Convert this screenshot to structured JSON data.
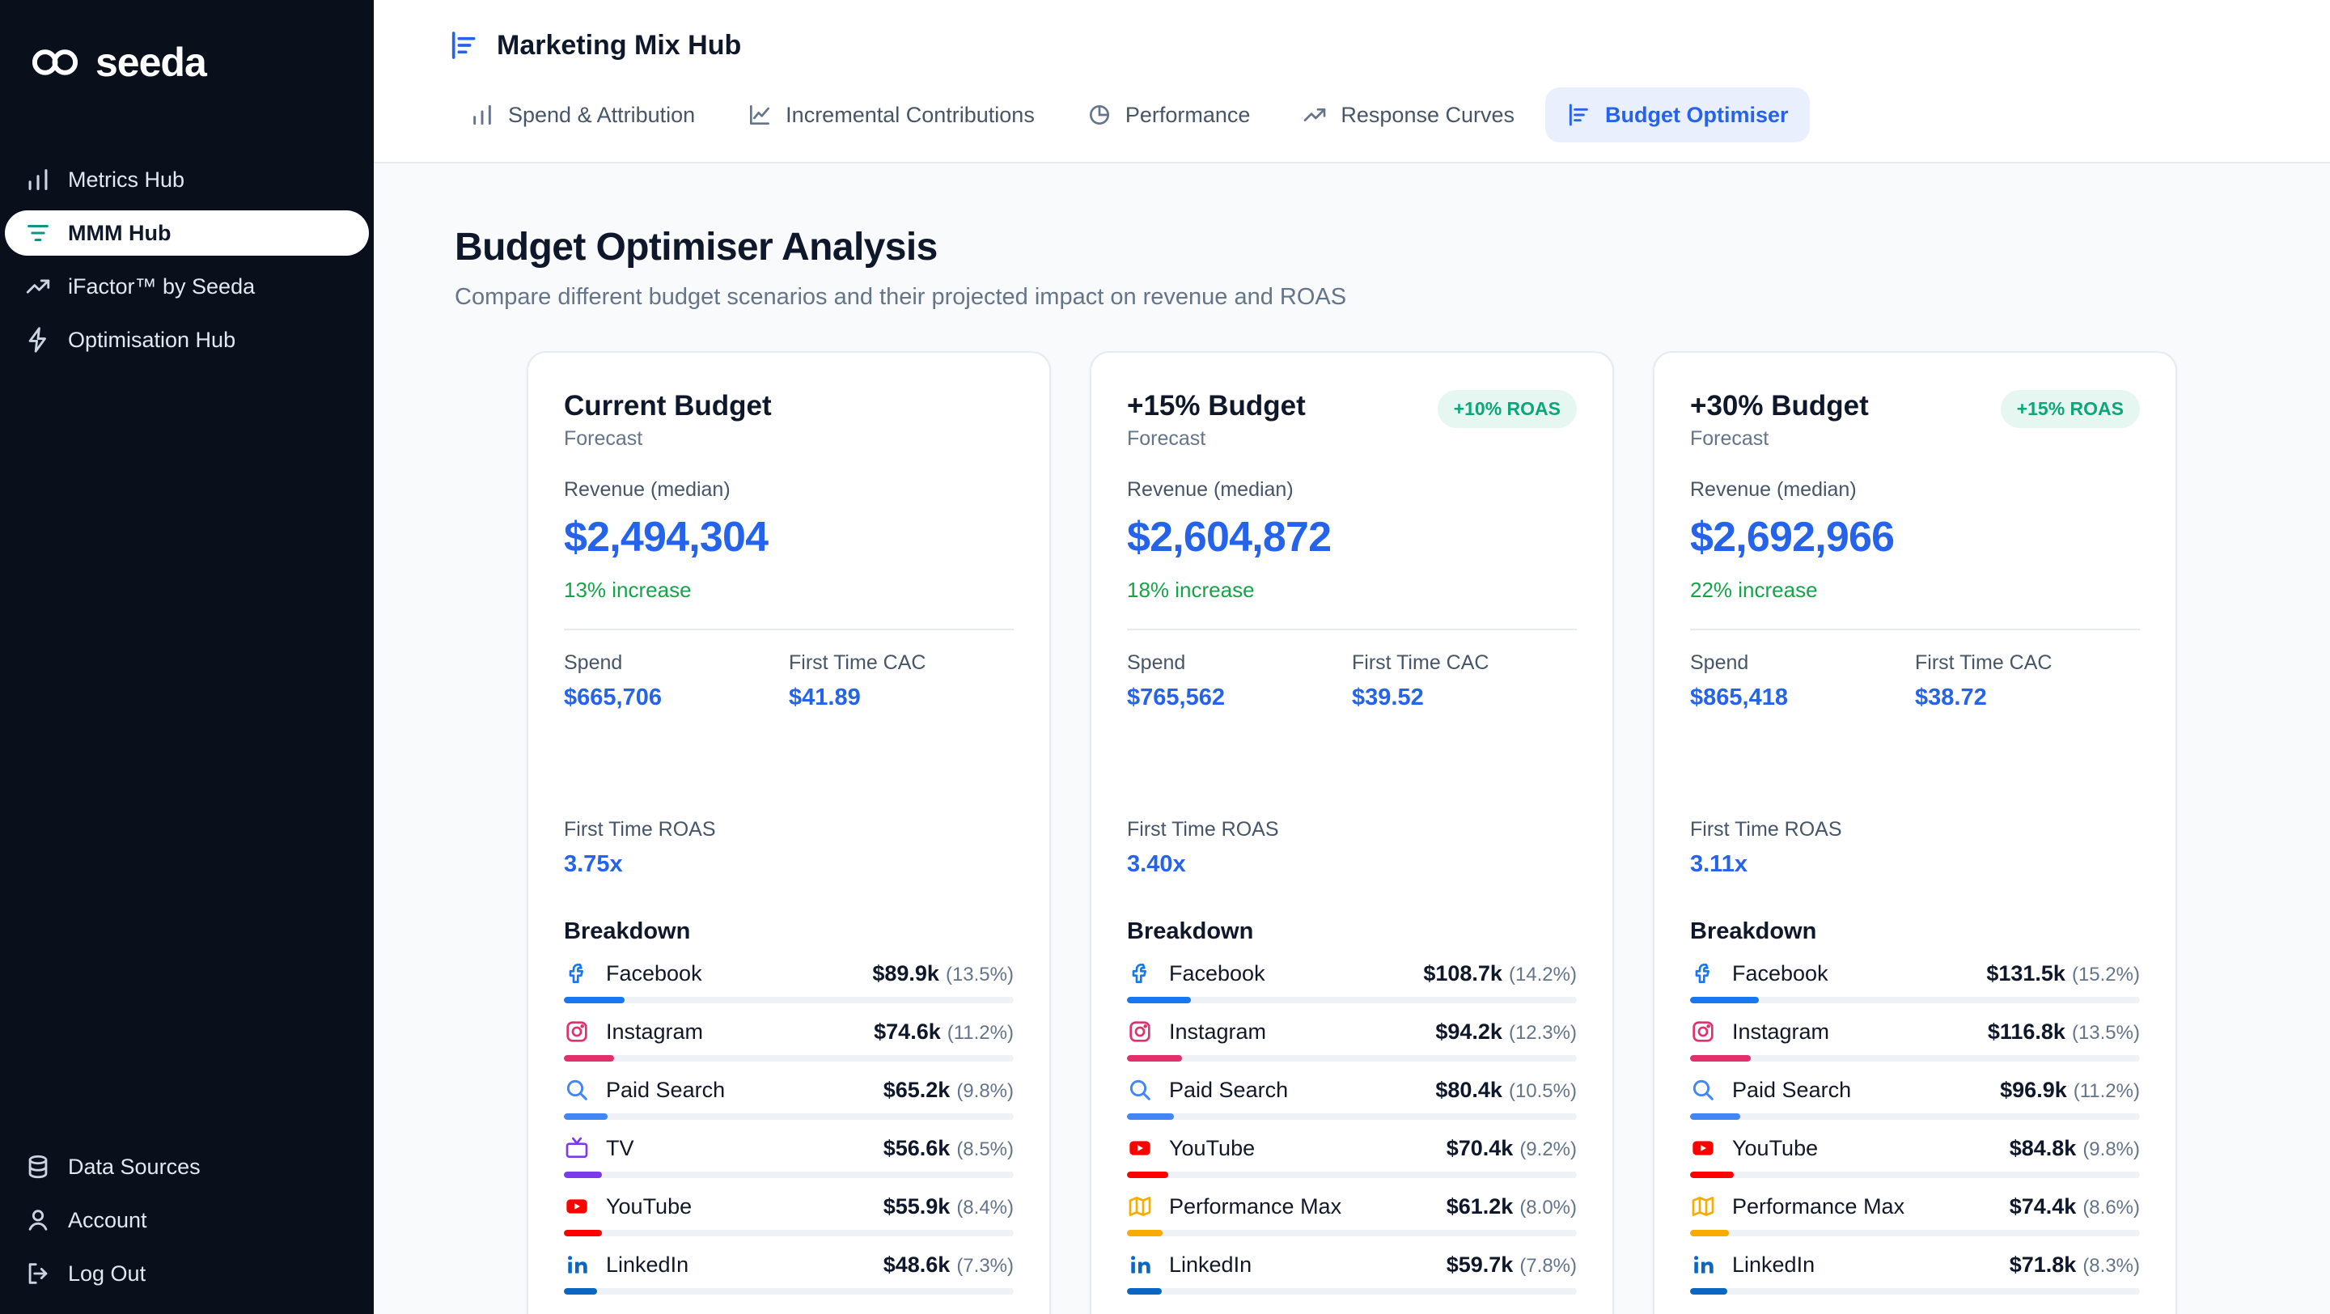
{
  "app": {
    "logo": "seeda",
    "logo_icon": "infinity"
  },
  "colors": {
    "accent": "#2563eb",
    "positive": "#16a34a",
    "badge_text": "#0ca678",
    "badge_bg": "#e6f7f1",
    "sidebar_bg": "#0a0f1c",
    "active_icon": "#0d9488",
    "tab_active_bg": "#e9effd"
  },
  "sidebar": {
    "items": [
      {
        "label": "Metrics Hub",
        "icon": "chart-columns",
        "active": false
      },
      {
        "label": "MMM Hub",
        "icon": "filter",
        "active": true
      },
      {
        "label": "iFactor™ by Seeda",
        "icon": "trending-up",
        "active": false
      },
      {
        "label": "Optimisation Hub",
        "icon": "spark",
        "active": false
      }
    ],
    "footer_items": [
      {
        "label": "Data Sources",
        "icon": "database",
        "active": false
      },
      {
        "label": "Account",
        "icon": "user",
        "active": false
      },
      {
        "label": "Log Out",
        "icon": "logout",
        "active": false
      }
    ]
  },
  "header": {
    "title": "Marketing Mix Hub",
    "title_icon": "chart-rows",
    "tabs": [
      {
        "label": "Spend & Attribution",
        "icon": "chart-columns",
        "active": false
      },
      {
        "label": "Incremental Contributions",
        "icon": "chart-line",
        "active": false
      },
      {
        "label": "Performance",
        "icon": "chart-pie",
        "active": false
      },
      {
        "label": "Response Curves",
        "icon": "trending-up",
        "active": false
      },
      {
        "label": "Budget Optimiser",
        "icon": "chart-rows",
        "active": true
      }
    ]
  },
  "page": {
    "title": "Budget Optimiser Analysis",
    "subtitle": "Compare different budget scenarios and their projected impact on revenue and ROAS"
  },
  "labels": {
    "forecast": "Forecast",
    "revenue": "Revenue (median)",
    "spend": "Spend",
    "cac": "First Time CAC",
    "roas": "First Time ROAS",
    "breakdown": "Breakdown"
  },
  "cards": [
    {
      "title": "Current Budget",
      "badge": null,
      "revenue": "$2,494,304",
      "increase": "13% increase",
      "spend": "$665,706",
      "cac": "$41.89",
      "roas": "3.75x",
      "channels": [
        {
          "name": "Facebook",
          "icon": "facebook",
          "value": "$89.9k",
          "pct_display": "(13.5%)",
          "pct": 13.5,
          "color": "#1877f2"
        },
        {
          "name": "Instagram",
          "icon": "instagram",
          "value": "$74.6k",
          "pct_display": "(11.2%)",
          "pct": 11.2,
          "color": "#e1306c"
        },
        {
          "name": "Paid Search",
          "icon": "search",
          "value": "$65.2k",
          "pct_display": "(9.8%)",
          "pct": 9.8,
          "color": "#4285f4"
        },
        {
          "name": "TV",
          "icon": "tv",
          "value": "$56.6k",
          "pct_display": "(8.5%)",
          "pct": 8.5,
          "color": "#7c3aed"
        },
        {
          "name": "YouTube",
          "icon": "youtube",
          "value": "$55.9k",
          "pct_display": "(8.4%)",
          "pct": 8.4,
          "color": "#ff0000"
        },
        {
          "name": "LinkedIn",
          "icon": "linkedin",
          "value": "$48.6k",
          "pct_display": "(7.3%)",
          "pct": 7.3,
          "color": "#0a66c2"
        }
      ]
    },
    {
      "title": "+15% Budget",
      "badge": "+10% ROAS",
      "revenue": "$2,604,872",
      "increase": "18% increase",
      "spend": "$765,562",
      "cac": "$39.52",
      "roas": "3.40x",
      "channels": [
        {
          "name": "Facebook",
          "icon": "facebook",
          "value": "$108.7k",
          "pct_display": "(14.2%)",
          "pct": 14.2,
          "color": "#1877f2"
        },
        {
          "name": "Instagram",
          "icon": "instagram",
          "value": "$94.2k",
          "pct_display": "(12.3%)",
          "pct": 12.3,
          "color": "#e1306c"
        },
        {
          "name": "Paid Search",
          "icon": "search",
          "value": "$80.4k",
          "pct_display": "(10.5%)",
          "pct": 10.5,
          "color": "#4285f4"
        },
        {
          "name": "YouTube",
          "icon": "youtube",
          "value": "$70.4k",
          "pct_display": "(9.2%)",
          "pct": 9.2,
          "color": "#ff0000"
        },
        {
          "name": "Performance Max",
          "icon": "performance-max",
          "value": "$61.2k",
          "pct_display": "(8.0%)",
          "pct": 8.0,
          "color": "#f9ab00"
        },
        {
          "name": "LinkedIn",
          "icon": "linkedin",
          "value": "$59.7k",
          "pct_display": "(7.8%)",
          "pct": 7.8,
          "color": "#0a66c2"
        }
      ]
    },
    {
      "title": "+30% Budget",
      "badge": "+15% ROAS",
      "revenue": "$2,692,966",
      "increase": "22% increase",
      "spend": "$865,418",
      "cac": "$38.72",
      "roas": "3.11x",
      "channels": [
        {
          "name": "Facebook",
          "icon": "facebook",
          "value": "$131.5k",
          "pct_display": "(15.2%)",
          "pct": 15.2,
          "color": "#1877f2"
        },
        {
          "name": "Instagram",
          "icon": "instagram",
          "value": "$116.8k",
          "pct_display": "(13.5%)",
          "pct": 13.5,
          "color": "#e1306c"
        },
        {
          "name": "Paid Search",
          "icon": "search",
          "value": "$96.9k",
          "pct_display": "(11.2%)",
          "pct": 11.2,
          "color": "#4285f4"
        },
        {
          "name": "YouTube",
          "icon": "youtube",
          "value": "$84.8k",
          "pct_display": "(9.8%)",
          "pct": 9.8,
          "color": "#ff0000"
        },
        {
          "name": "Performance Max",
          "icon": "performance-max",
          "value": "$74.4k",
          "pct_display": "(8.6%)",
          "pct": 8.6,
          "color": "#f9ab00"
        },
        {
          "name": "LinkedIn",
          "icon": "linkedin",
          "value": "$71.8k",
          "pct_display": "(8.3%)",
          "pct": 8.3,
          "color": "#0a66c2"
        }
      ]
    }
  ]
}
